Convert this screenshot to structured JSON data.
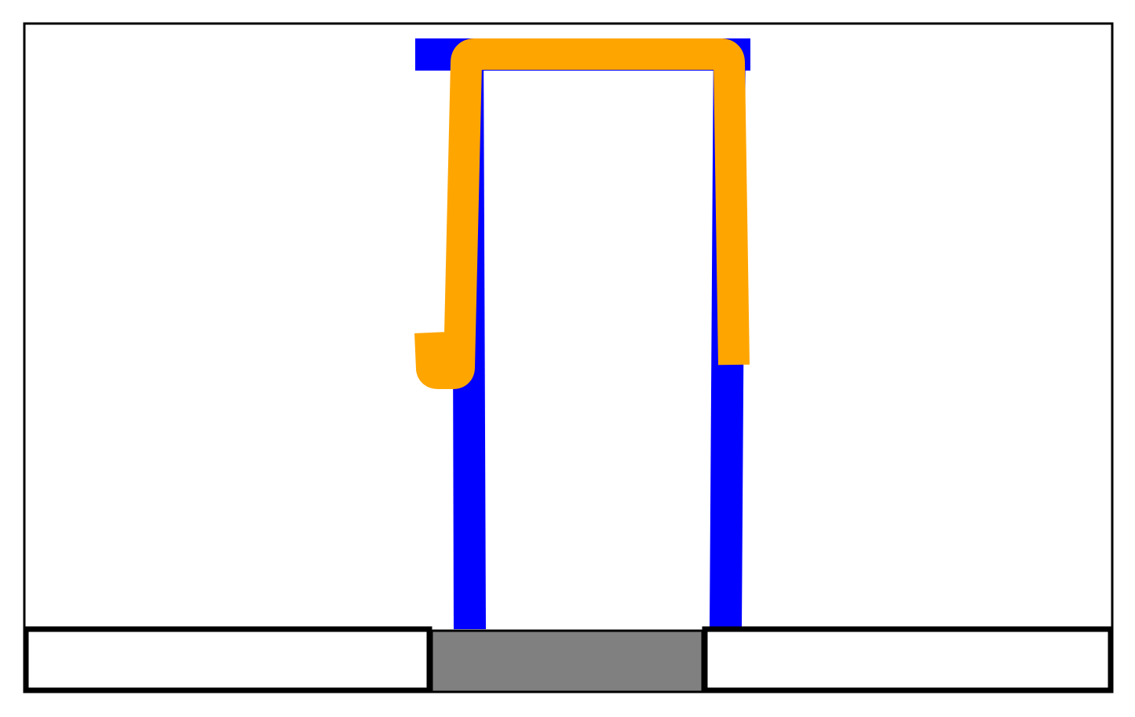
{
  "diagram": {
    "colors": {
      "frame": "#000000",
      "background": "#ffffff",
      "portal": "#0000ff",
      "path": "#ffa500",
      "base_center": "#808080",
      "base_sides": "#ffffff"
    },
    "elements": [
      "outer-frame",
      "blue-portal-left-post",
      "blue-portal-right-post",
      "blue-portal-top-bar",
      "orange-path",
      "base-left-block",
      "base-center-block",
      "base-right-block"
    ]
  }
}
